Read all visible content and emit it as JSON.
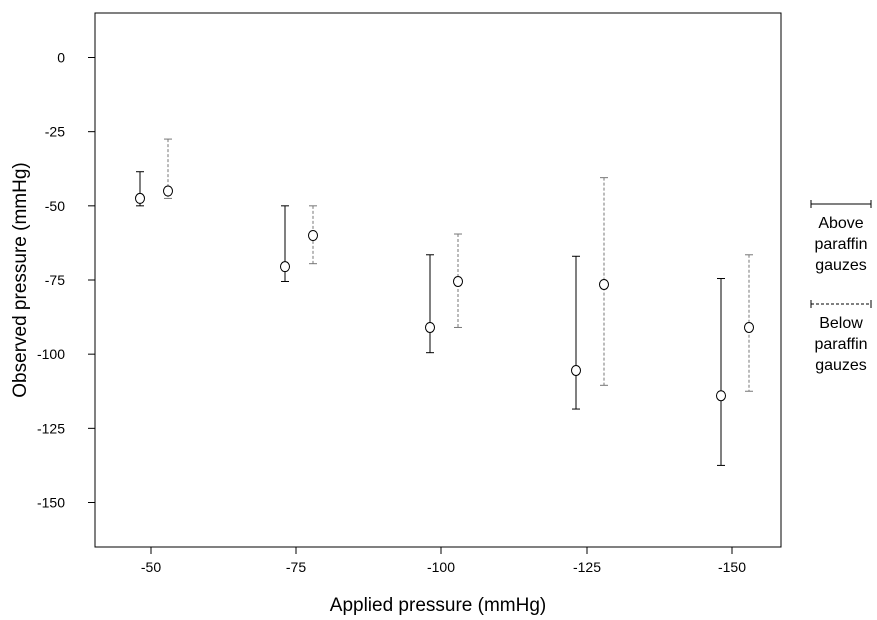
{
  "chart_data": {
    "type": "scatter",
    "title": "",
    "xlabel": "Applied pressure (mmHg)",
    "ylabel": "Observed pressure (mmHg)",
    "categories": [
      "-50",
      "-75",
      "-100",
      "-125",
      "-150"
    ],
    "ylim": [
      -165,
      15
    ],
    "yticks": [
      0,
      -25,
      -50,
      -75,
      -100,
      -125,
      -150
    ],
    "yticks_labels": [
      "0",
      "-25",
      "-50",
      "-75",
      "-100",
      "-125",
      "-150"
    ],
    "grid": false,
    "legend_position": "right",
    "series": [
      {
        "name": "Above paraffin gauzes",
        "line_style": "solid",
        "color": "#000000",
        "values": [
          -47.5,
          -70.5,
          -91,
          -105.5,
          -114
        ],
        "lower": [
          -50,
          -75.5,
          -99.5,
          -118.5,
          -137.5
        ],
        "upper": [
          -38.5,
          -50,
          -66.5,
          -67,
          -74.5
        ]
      },
      {
        "name": "Below paraffin gauzes",
        "line_style": "dashed",
        "color": "#777777",
        "values": [
          -45,
          -60,
          -75.5,
          -76.5,
          -91
        ],
        "lower": [
          -47.5,
          -69.5,
          -91,
          -110.5,
          -112.5
        ],
        "upper": [
          -27.5,
          -50,
          -59.5,
          -40.5,
          -66.5
        ]
      }
    ],
    "legend": [
      {
        "series": 0,
        "lines": [
          "Above",
          "paraffin",
          "gauzes"
        ]
      },
      {
        "series": 1,
        "lines": [
          "Below",
          "paraffin",
          "gauzes"
        ]
      }
    ]
  }
}
